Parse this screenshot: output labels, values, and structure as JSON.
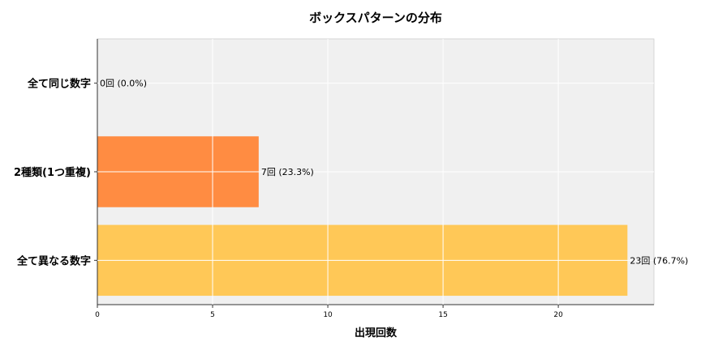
{
  "chart_data": {
    "type": "bar",
    "orientation": "horizontal",
    "title": "ボックスパターンの分布",
    "xlabel": "出現回数",
    "ylabel": "",
    "categories": [
      "全て同じ数字",
      "2種類(1つ重複)",
      "全て異なる数字"
    ],
    "values": [
      0,
      7,
      23
    ],
    "data_labels": [
      "0回 (0.0%)",
      "7回 (23.3%)",
      "23回 (76.7%)"
    ],
    "colors": [
      "#ff6b35",
      "#ff8c42",
      "#ffc857"
    ],
    "xlim": [
      0,
      24.15
    ],
    "xticks": [
      0,
      5,
      10,
      15,
      20
    ],
    "grid": true,
    "background": "#f0f0f0"
  }
}
